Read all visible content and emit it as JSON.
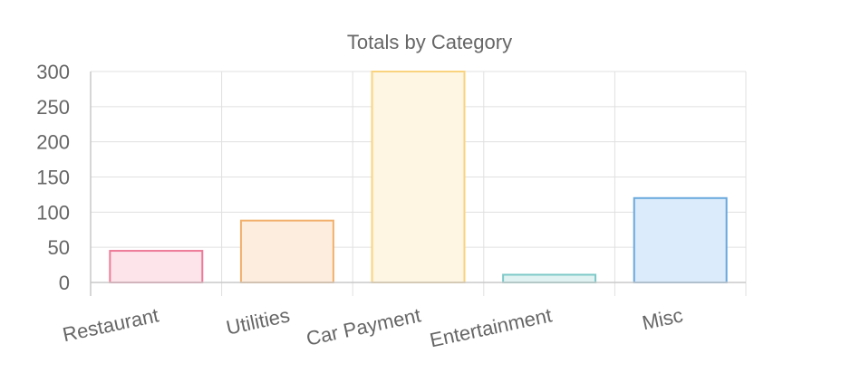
{
  "chart_data": {
    "type": "bar",
    "title": "Totals by Category",
    "xlabel": "",
    "ylabel": "",
    "categories": [
      "Restaurant",
      "Utilities",
      "Car Payment",
      "Entertainment",
      "Misc"
    ],
    "values": [
      45,
      88,
      300,
      11,
      120
    ],
    "ylim": [
      0,
      300
    ],
    "yticks": [
      0,
      50,
      100,
      150,
      200,
      250,
      300
    ],
    "grid": true,
    "legend": "none",
    "colors": {
      "fills": [
        "#fce4ea",
        "#fdeddf",
        "#fef5e2",
        "#e0f3f2",
        "#dcebfb"
      ],
      "strokes": [
        "#ee7a98",
        "#f2b06c",
        "#fad37f",
        "#7dc8c8",
        "#6aa8dc"
      ]
    }
  }
}
